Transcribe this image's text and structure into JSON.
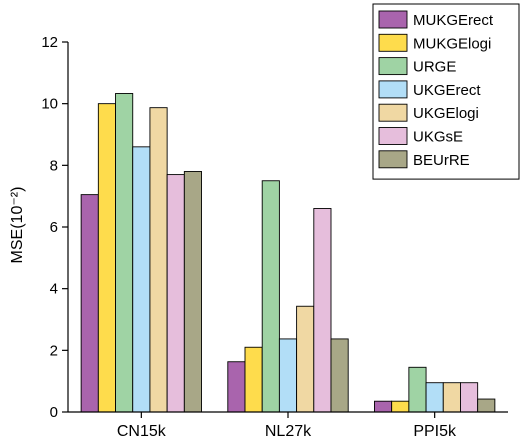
{
  "chart_data": {
    "type": "bar",
    "categories": [
      "CN15k",
      "NL27k",
      "PPI5k"
    ],
    "ylabel": "MSE(10⁻²)",
    "ylim": [
      0,
      12
    ],
    "yticks": [
      0,
      2,
      4,
      6,
      8,
      10,
      12
    ],
    "grid": false,
    "legend": "top-right",
    "series": [
      {
        "name": "MUKGErect",
        "color": "#a964ad",
        "values": [
          7.05,
          1.63,
          0.35
        ]
      },
      {
        "name": "MUKGElogi",
        "color": "#fedc4c",
        "values": [
          10.0,
          2.1,
          0.35
        ]
      },
      {
        "name": "URGE",
        "color": "#9fd3a4",
        "values": [
          10.33,
          7.5,
          1.45
        ]
      },
      {
        "name": "UKGErect",
        "color": "#b2def7",
        "values": [
          8.6,
          2.37,
          0.95
        ]
      },
      {
        "name": "UKGElogi",
        "color": "#f0d8a3",
        "values": [
          9.87,
          3.43,
          0.95
        ]
      },
      {
        "name": "UKGsE",
        "color": "#e6bedc",
        "values": [
          7.7,
          6.6,
          0.95
        ]
      },
      {
        "name": "BEUrRE",
        "color": "#a8a787",
        "values": [
          7.8,
          2.37,
          0.42
        ]
      }
    ]
  }
}
